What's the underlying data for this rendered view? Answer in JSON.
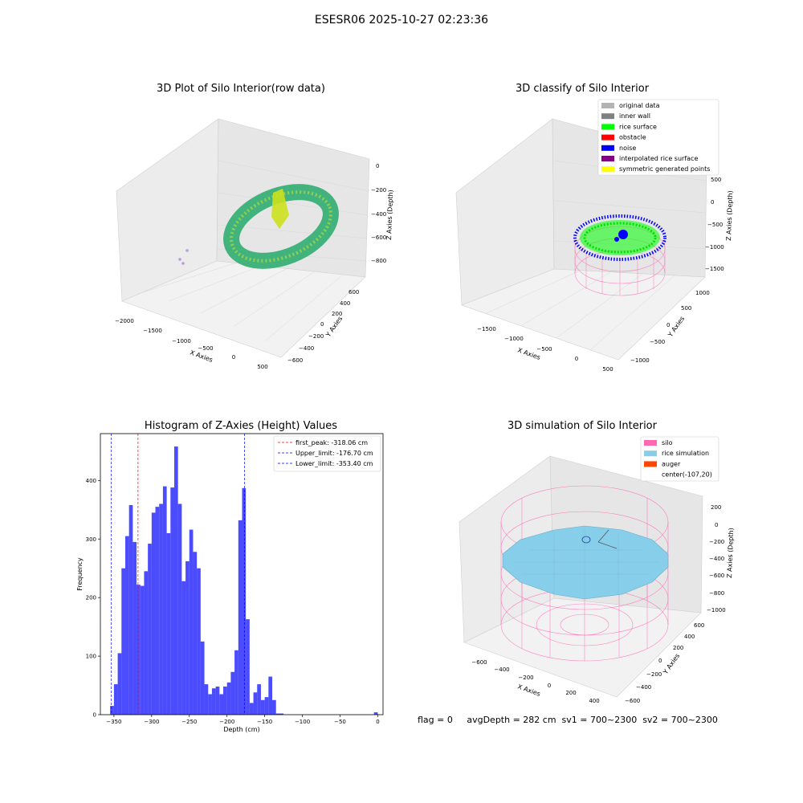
{
  "suptitle": "ESESR06 2025-10-27 02:23:36",
  "panels": {
    "p1": {
      "title": "3D Plot of Silo Interior(row data)",
      "xlabel": "X Axies",
      "ylabel": "Y Axies",
      "zlabel": "Z Axies (Depth)",
      "xticks": [
        "−2000",
        "−1500",
        "−1000",
        "−500",
        "0",
        "500"
      ],
      "yticks": [
        "−600",
        "−400",
        "−200",
        "0",
        "200",
        "400",
        "600"
      ],
      "zticks": [
        "0",
        "−200",
        "−400",
        "−600",
        "−800"
      ]
    },
    "p2": {
      "title": "3D classify of Silo Interior",
      "xlabel": "X Axies",
      "ylabel": "Y Axies",
      "zlabel": "Z Axies (Depth)",
      "xticks": [
        "−1500",
        "−1000",
        "−500",
        "0",
        "500"
      ],
      "yticks": [
        "−1000",
        "−500",
        "0",
        "500",
        "1000"
      ],
      "zticks": [
        "500",
        "0",
        "−500",
        "−1000",
        "−1500"
      ],
      "legend": [
        {
          "label": "original data",
          "color": "#b3b3b3"
        },
        {
          "label": "inner wall",
          "color": "#808080"
        },
        {
          "label": "rice surface",
          "color": "#00ff00"
        },
        {
          "label": "obstacle",
          "color": "#ff0000"
        },
        {
          "label": "noise",
          "color": "#0000ff"
        },
        {
          "label": "interpolated rice surface",
          "color": "#800080"
        },
        {
          "label": "symmetric generated points",
          "color": "#ffff00"
        }
      ]
    },
    "p4": {
      "title": "3D simulation of Silo Interior",
      "xlabel": "X Axies",
      "ylabel": "Y Axies",
      "zlabel": "Z Axies (Depth)",
      "xticks": [
        "−600",
        "−400",
        "−200",
        "0",
        "200",
        "400"
      ],
      "yticks": [
        "−600",
        "−400",
        "−200",
        "0",
        "200",
        "400",
        "600"
      ],
      "zticks": [
        "200",
        "0",
        "−200",
        "−400",
        "−600",
        "−800",
        "−1000"
      ],
      "legend": [
        {
          "label": "silo",
          "color": "#ff69b4"
        },
        {
          "label": "rice simulation",
          "color": "#87ceeb"
        },
        {
          "label": "auger",
          "color": "#ff4500"
        },
        {
          "label": "center(-107,20)",
          "color": ""
        }
      ]
    }
  },
  "chart_data": [
    {
      "type": "bar",
      "title": "Histogram of Z-Axies (Height) Values",
      "xlabel": "Depth (cm)",
      "ylabel": "Frequency",
      "xlim": [
        -368,
        7
      ],
      "ylim": [
        0,
        480
      ],
      "xticks": [
        -350,
        -300,
        -250,
        -200,
        -150,
        -100,
        -50,
        0
      ],
      "yticks": [
        0,
        100,
        200,
        300,
        400
      ],
      "bin_width": 5,
      "bin_starts": [
        -355,
        -350,
        -345,
        -340,
        -335,
        -330,
        -325,
        -320,
        -315,
        -310,
        -305,
        -300,
        -295,
        -290,
        -285,
        -280,
        -275,
        -270,
        -265,
        -260,
        -255,
        -250,
        -245,
        -240,
        -235,
        -230,
        -225,
        -220,
        -215,
        -210,
        -205,
        -200,
        -195,
        -190,
        -185,
        -180,
        -175,
        -170,
        -165,
        -160,
        -155,
        -150,
        -145,
        -140,
        -135,
        -130,
        -125,
        -120,
        -115,
        -110,
        -105,
        -100,
        -95,
        -90,
        -85,
        -80,
        -75,
        -70,
        -65,
        -60,
        -55,
        -50,
        -45,
        -40,
        -35,
        -30,
        -25,
        -20,
        -15,
        -10,
        -5,
        0
      ],
      "values": [
        15,
        52,
        105,
        250,
        305,
        358,
        295,
        222,
        220,
        245,
        292,
        345,
        355,
        360,
        390,
        310,
        388,
        458,
        360,
        228,
        262,
        316,
        278,
        250,
        125,
        52,
        35,
        45,
        48,
        35,
        48,
        55,
        73,
        110,
        332,
        387,
        163,
        20,
        38,
        52,
        25,
        30,
        65,
        25,
        2,
        2,
        0,
        0,
        0,
        0,
        0,
        0,
        0,
        0,
        0,
        0,
        0,
        0,
        0,
        0,
        0,
        0,
        0,
        0,
        0,
        0,
        0,
        0,
        0,
        0,
        4,
        0
      ],
      "bar_color": "#0000ff",
      "vlines": [
        {
          "label": "first_peak: -318.06 cm",
          "x": -318.06,
          "color": "#ff0000"
        },
        {
          "label": "Upper_limit: -176.70 cm",
          "x": -176.7,
          "color": "#0000ff"
        },
        {
          "label": "Lower_limit: -353.40 cm",
          "x": -353.4,
          "color": "#0000ff"
        }
      ],
      "legend_position": "top-right"
    }
  ],
  "footer": "flag = 0     avgDepth = 282 cm  sv1 = 700~2300  sv2 = 700~2300"
}
